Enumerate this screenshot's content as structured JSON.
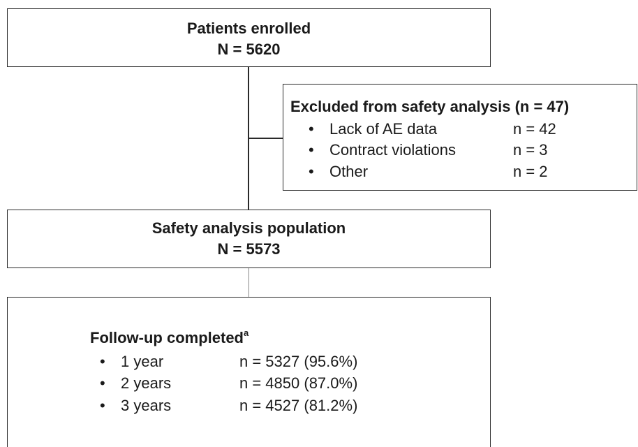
{
  "enrolled": {
    "title": "Patients enrolled",
    "count": "N = 5620"
  },
  "excluded": {
    "title": "Excluded from safety analysis (n = 47)",
    "items": [
      {
        "label": "Lack of AE data",
        "count": "n = 42"
      },
      {
        "label": "Contract violations",
        "count": "n = 3"
      },
      {
        "label": "Other",
        "count": "n = 2"
      }
    ]
  },
  "safety": {
    "title": "Safety analysis population",
    "count": "N = 5573"
  },
  "followup": {
    "title": "Follow-up completed",
    "footnote": "a",
    "items": [
      {
        "label": "1 year",
        "count": "n = 5327 (95.6%)"
      },
      {
        "label": "2 years",
        "count": "n = 4850 (87.0%)"
      },
      {
        "label": "3 years",
        "count": "n = 4527 (81.2%)"
      }
    ]
  }
}
